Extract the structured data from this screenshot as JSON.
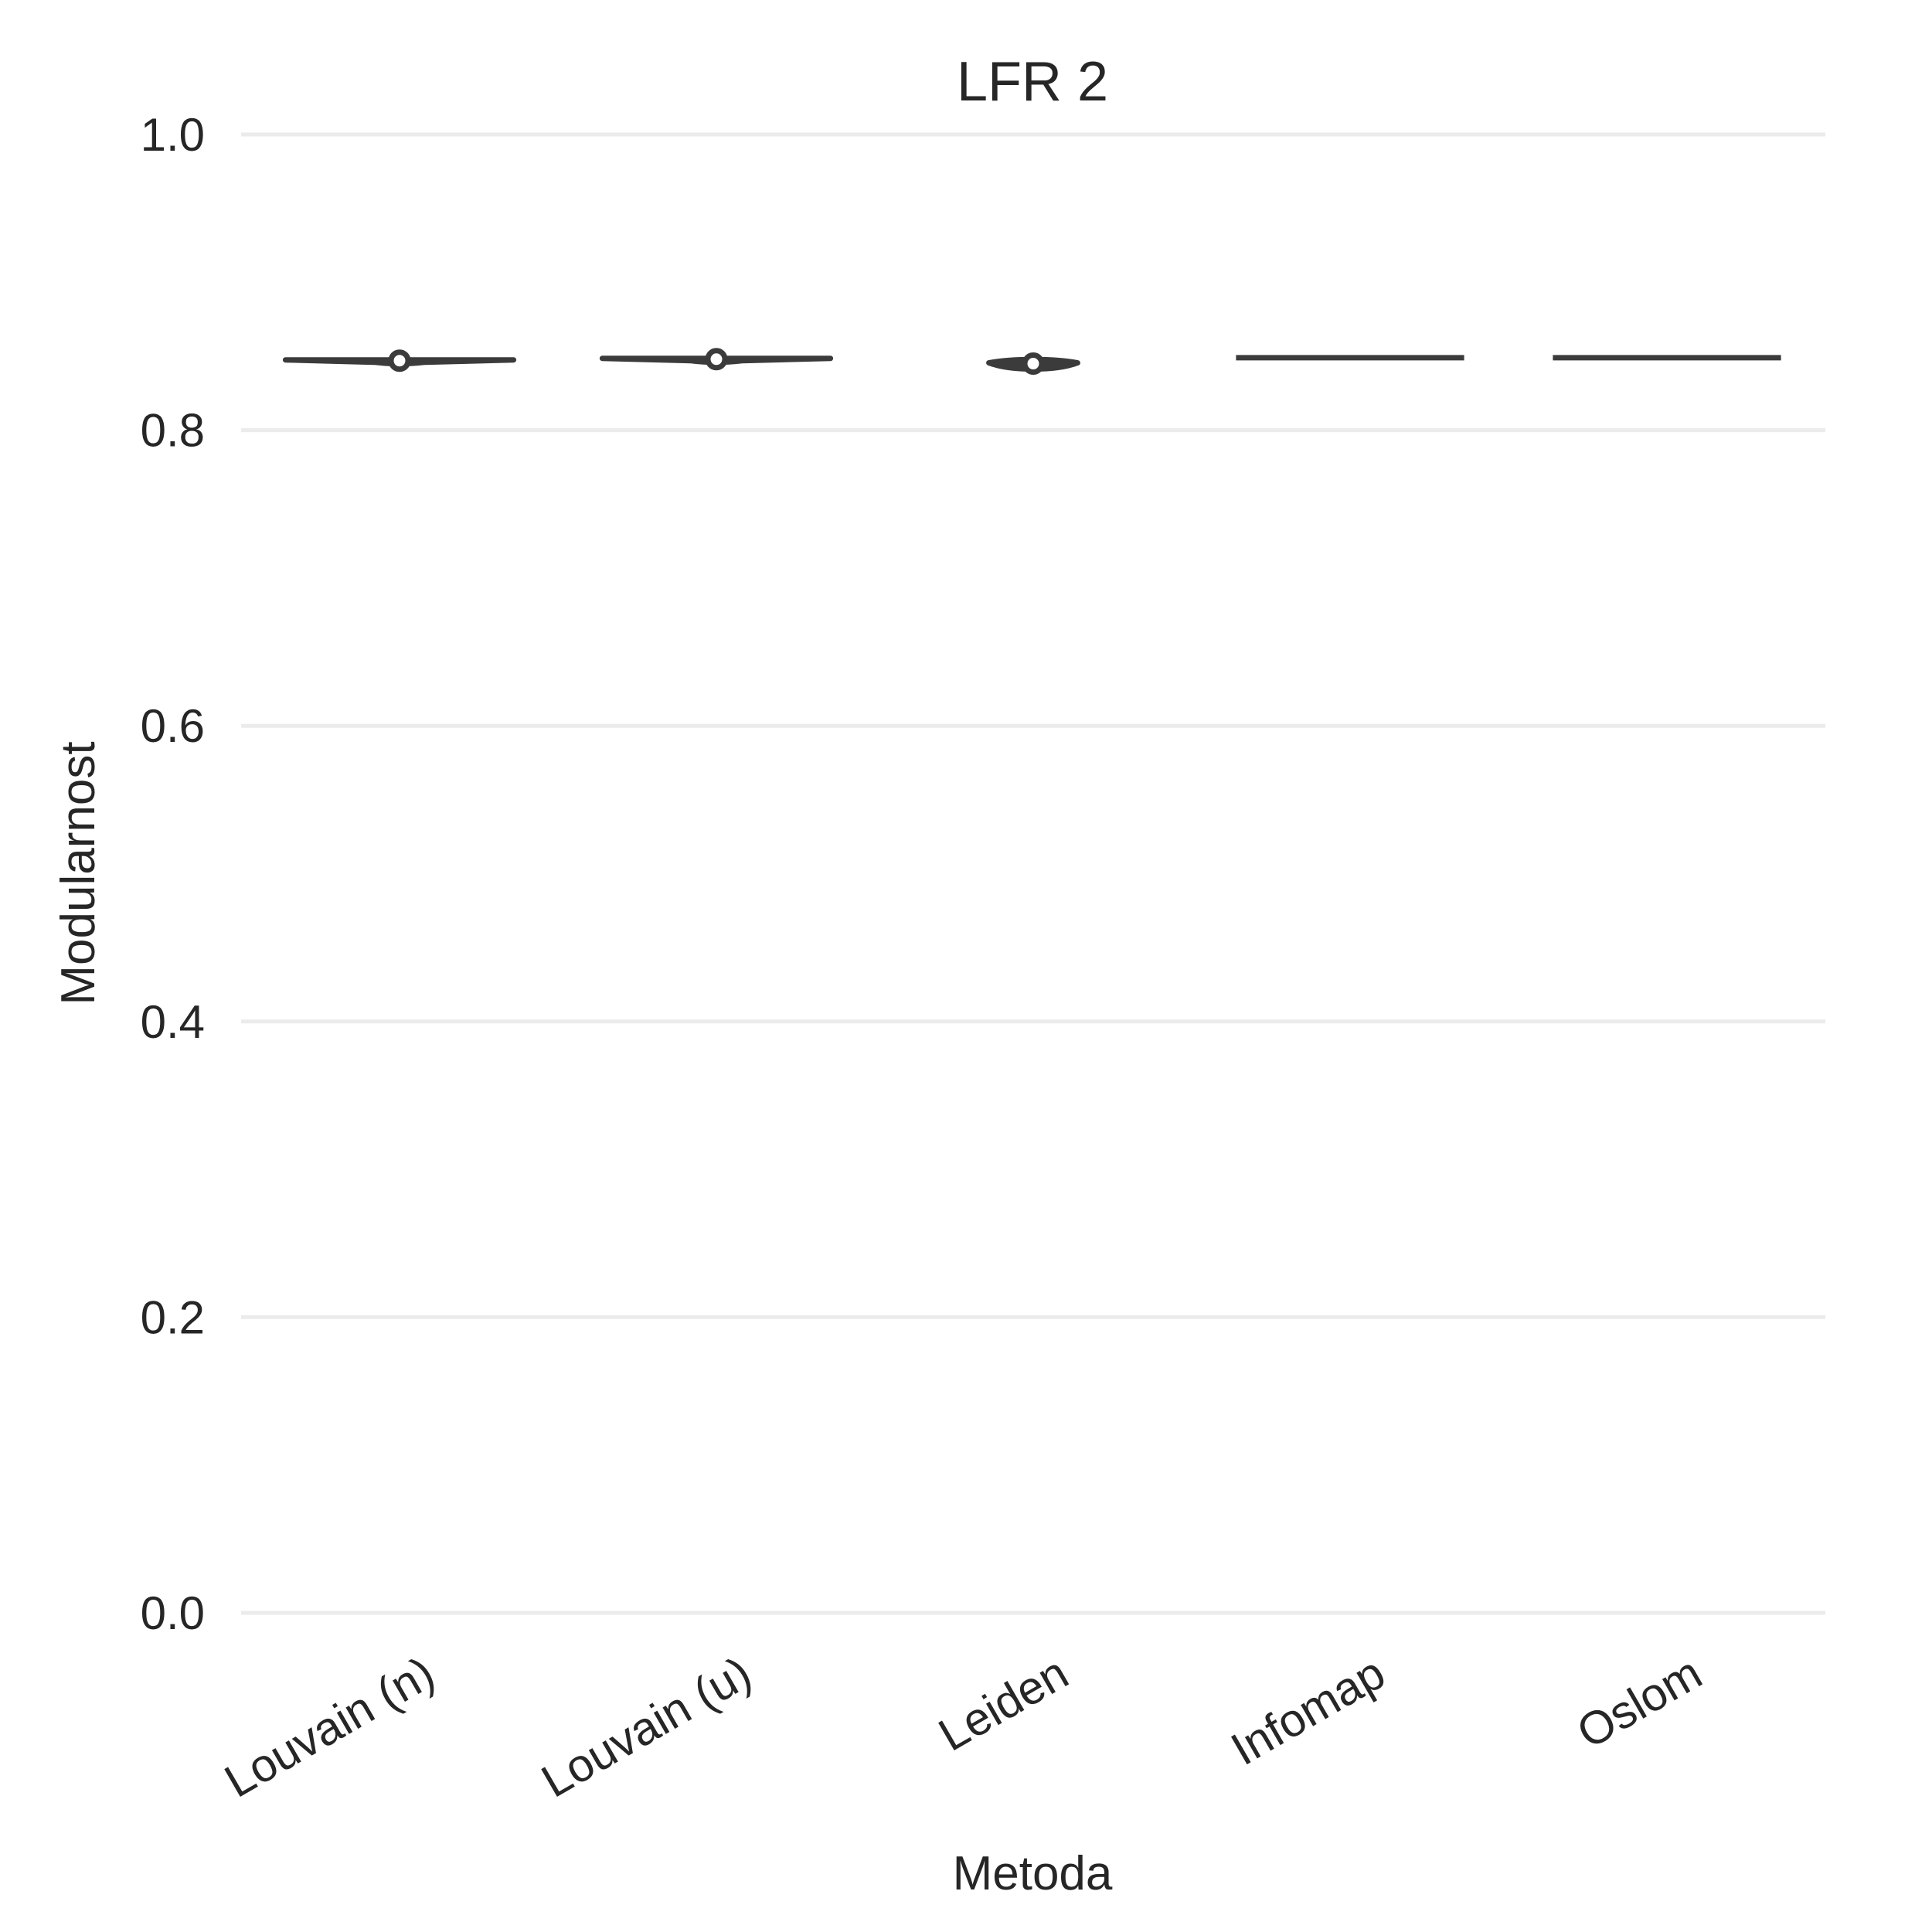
{
  "chart_data": {
    "type": "violin",
    "title": "LFR 2",
    "xlabel": "Metoda",
    "ylabel": "Modularnost",
    "ylim": [
      0.0,
      1.0
    ],
    "yticks": [
      "0.0",
      "0.2",
      "0.4",
      "0.6",
      "0.8",
      "1.0"
    ],
    "grid": true,
    "categories": [
      "Louvain (n)",
      "Louvain (u)",
      "Leiden",
      "Infomap",
      "Oslom"
    ],
    "series": [
      {
        "category": "Louvain (n)",
        "median": 0.847,
        "min": 0.845,
        "max": 0.848,
        "has_median_marker": true
      },
      {
        "category": "Louvain (u)",
        "median": 0.848,
        "min": 0.846,
        "max": 0.849,
        "has_median_marker": true
      },
      {
        "category": "Leiden",
        "median": 0.845,
        "min": 0.842,
        "max": 0.848,
        "has_median_marker": true
      },
      {
        "category": "Infomap",
        "median": 0.849,
        "min": 0.849,
        "max": 0.849,
        "has_median_marker": false
      },
      {
        "category": "Oslom",
        "median": 0.849,
        "min": 0.849,
        "max": 0.849,
        "has_median_marker": false
      }
    ],
    "colors": {
      "violin": "#3b3b3b",
      "grid": "#ebebeb",
      "text": "#262626"
    }
  }
}
